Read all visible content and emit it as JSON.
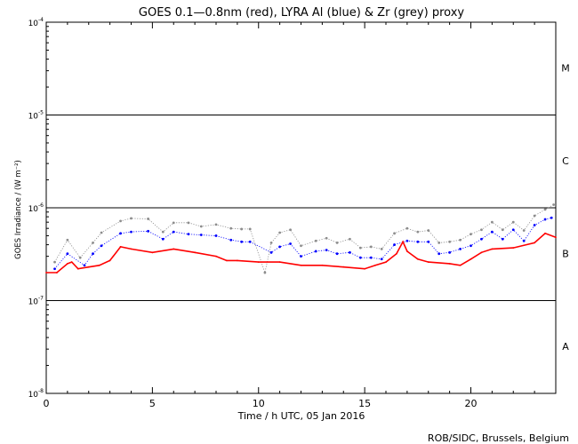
{
  "chart_data": {
    "type": "line",
    "title": "GOES 0.1—0.8nm (red), LYRA Al (blue) & Zr (grey) proxy",
    "xlabel": "Time / h UTC, 05 Jan 2016",
    "ylabel": "GOES Irradiance / (W m⁻²)",
    "xlim": [
      0,
      24
    ],
    "ylim": [
      1e-08,
      0.0001
    ],
    "yscale": "log",
    "x_ticks": [
      0,
      5,
      10,
      15,
      20
    ],
    "x_tick_labels": [
      "0",
      "5",
      "10",
      "15",
      "20"
    ],
    "y_ticks": [
      1e-08,
      1e-07,
      1e-06,
      1e-05,
      0.0001
    ],
    "y_tick_labels": [
      {
        "base": "10",
        "exp": "-8"
      },
      {
        "base": "10",
        "exp": "-7"
      },
      {
        "base": "10",
        "exp": "-6"
      },
      {
        "base": "10",
        "exp": "-5"
      },
      {
        "base": "10",
        "exp": "-4"
      }
    ],
    "class_lines": [
      1e-07,
      1e-06,
      1e-05
    ],
    "class_labels": [
      {
        "label": "A",
        "y": 3.2e-08
      },
      {
        "label": "B",
        "y": 3.2e-07
      },
      {
        "label": "C",
        "y": 3.2e-06
      },
      {
        "label": "M",
        "y": 3.2e-05
      }
    ],
    "grid": false,
    "series": [
      {
        "color": "#ff0000",
        "style": "line",
        "x": [
          0,
          0.5,
          1.0,
          1.2,
          1.5,
          2.0,
          2.5,
          3.0,
          3.5,
          4.0,
          5.0,
          6.0,
          7.0,
          8.0,
          8.5,
          9.0,
          10.0,
          11.0,
          12.0,
          13.0,
          14.0,
          15.0,
          15.5,
          16.0,
          16.5,
          16.8,
          17.0,
          17.5,
          18.0,
          19.0,
          19.5,
          20.0,
          20.5,
          21.0,
          22.0,
          23.0,
          23.5,
          24.0
        ],
        "values": [
          2e-07,
          2e-07,
          2.5e-07,
          2.6e-07,
          2.2e-07,
          2.3e-07,
          2.4e-07,
          2.7e-07,
          3.8e-07,
          3.6e-07,
          3.3e-07,
          3.6e-07,
          3.3e-07,
          3e-07,
          2.7e-07,
          2.7e-07,
          2.6e-07,
          2.6e-07,
          2.4e-07,
          2.4e-07,
          2.3e-07,
          2.2e-07,
          2.4e-07,
          2.6e-07,
          3.2e-07,
          4.3e-07,
          3.4e-07,
          2.8e-07,
          2.6e-07,
          2.5e-07,
          2.4e-07,
          2.8e-07,
          3.3e-07,
          3.6e-07,
          3.7e-07,
          4.2e-07,
          5.3e-07,
          4.8e-07
        ]
      },
      {
        "color": "#0000ff",
        "style": "dots",
        "x": [
          0.4,
          1.0,
          1.8,
          2.2,
          2.6,
          3.5,
          4.0,
          4.8,
          5.5,
          6.0,
          6.7,
          7.3,
          8.0,
          8.7,
          9.2,
          9.6,
          10.6,
          11.0,
          11.5,
          12.0,
          12.7,
          13.2,
          13.7,
          14.3,
          14.8,
          15.3,
          15.8,
          16.4,
          17.0,
          17.5,
          18.0,
          18.5,
          19.0,
          19.5,
          20.0,
          20.5,
          21.0,
          21.5,
          22.0,
          22.5,
          23.0,
          23.5,
          23.8
        ],
        "values": [
          2.2e-07,
          3.2e-07,
          2.4e-07,
          3.2e-07,
          3.9e-07,
          5.3e-07,
          5.5e-07,
          5.6e-07,
          4.6e-07,
          5.5e-07,
          5.2e-07,
          5.1e-07,
          5e-07,
          4.5e-07,
          4.3e-07,
          4.3e-07,
          3.3e-07,
          3.8e-07,
          4.1e-07,
          3e-07,
          3.4e-07,
          3.5e-07,
          3.2e-07,
          3.3e-07,
          2.9e-07,
          2.9e-07,
          2.8e-07,
          4e-07,
          4.4e-07,
          4.3e-07,
          4.3e-07,
          3.2e-07,
          3.3e-07,
          3.6e-07,
          3.9e-07,
          4.6e-07,
          5.5e-07,
          4.6e-07,
          5.8e-07,
          4.4e-07,
          6.5e-07,
          7.5e-07,
          7.8e-07
        ]
      },
      {
        "color": "#8c8c8c",
        "style": "dots",
        "x": [
          0.4,
          1.0,
          1.6,
          2.2,
          2.6,
          3.5,
          4.0,
          4.8,
          5.5,
          6.0,
          6.7,
          7.3,
          8.0,
          8.7,
          9.2,
          9.6,
          10.3,
          10.6,
          11.0,
          11.5,
          12.0,
          12.7,
          13.2,
          13.7,
          14.3,
          14.8,
          15.3,
          15.8,
          16.4,
          17.0,
          17.5,
          18.0,
          18.5,
          19.0,
          19.5,
          20.0,
          20.5,
          21.0,
          21.5,
          22.0,
          22.5,
          23.0,
          23.5,
          23.9
        ],
        "values": [
          2.6e-07,
          4.5e-07,
          2.9e-07,
          4.2e-07,
          5.4e-07,
          7.2e-07,
          7.7e-07,
          7.6e-07,
          5.5e-07,
          6.9e-07,
          6.9e-07,
          6.3e-07,
          6.6e-07,
          6e-07,
          5.9e-07,
          5.9e-07,
          2e-07,
          4.2e-07,
          5.4e-07,
          5.8e-07,
          3.9e-07,
          4.4e-07,
          4.7e-07,
          4.2e-07,
          4.6e-07,
          3.7e-07,
          3.8e-07,
          3.6e-07,
          5.3e-07,
          6e-07,
          5.5e-07,
          5.7e-07,
          4.2e-07,
          4.3e-07,
          4.5e-07,
          5.2e-07,
          5.8e-07,
          7e-07,
          5.8e-07,
          7e-07,
          5.7e-07,
          8.2e-07,
          9.6e-07,
          1.08e-06
        ]
      }
    ]
  },
  "footer": "ROB/SIDC, Brussels, Belgium"
}
